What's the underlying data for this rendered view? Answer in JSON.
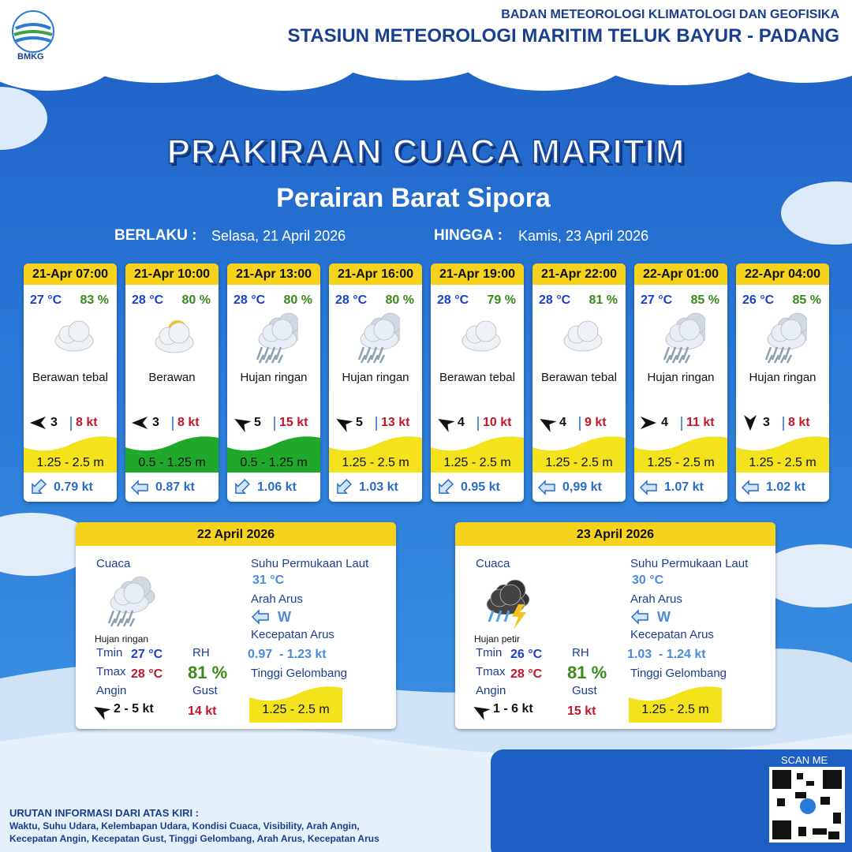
{
  "header": {
    "logo_text": "BMKG",
    "org": "BADAN METEOROLOGI KLIMATOLOGI DAN GEOFISIKA",
    "station": "STASIUN METEOROLOGI MARITIM TELUK BAYUR - PADANG"
  },
  "title": "PRAKIRAAN CUACA MARITIM",
  "subtitle": "Perairan Barat Sipora",
  "validity": {
    "from_label": "BERLAKU :",
    "from": "Selasa, 21 April 2026",
    "to_label": "HINGGA :",
    "to": "Kamis, 23 April 2026"
  },
  "forecasts": [
    {
      "time": "21-Apr 07:00",
      "temp": "27 °C",
      "rh": "83 %",
      "weather": "Berawan tebal",
      "wind": "3",
      "gust": "8 kt",
      "wave": "1.25 - 2.5 m",
      "wave_color": "#f3e21c",
      "current": "0.79 kt"
    },
    {
      "time": "21-Apr 10:00",
      "temp": "28 °C",
      "rh": "80 %",
      "weather": "Berawan",
      "wind": "3",
      "gust": "8 kt",
      "wave": "0.5 - 1.25 m",
      "wave_color": "#1fa82a",
      "current": "0.87 kt"
    },
    {
      "time": "21-Apr 13:00",
      "temp": "28 °C",
      "rh": "80 %",
      "weather": "Hujan ringan",
      "wind": "5",
      "gust": "15 kt",
      "wave": "0.5 - 1.25 m",
      "wave_color": "#1fa82a",
      "current": "1.06 kt"
    },
    {
      "time": "21-Apr 16:00",
      "temp": "28 °C",
      "rh": "80 %",
      "weather": "Hujan ringan",
      "wind": "5",
      "gust": "13 kt",
      "wave": "1.25 - 2.5 m",
      "wave_color": "#f3e21c",
      "current": "1.03 kt"
    },
    {
      "time": "21-Apr 19:00",
      "temp": "28 °C",
      "rh": "79 %",
      "weather": "Berawan tebal",
      "wind": "4",
      "gust": "10 kt",
      "wave": "1.25 - 2.5 m",
      "wave_color": "#f3e21c",
      "current": "0.95 kt"
    },
    {
      "time": "21-Apr 22:00",
      "temp": "28 °C",
      "rh": "81 %",
      "weather": "Berawan tebal",
      "wind": "4",
      "gust": "9 kt",
      "wave": "1.25 - 2.5 m",
      "wave_color": "#f3e21c",
      "current": "0,99 kt"
    },
    {
      "time": "22-Apr 01:00",
      "temp": "27 °C",
      "rh": "85 %",
      "weather": "Hujan ringan",
      "wind": "4",
      "gust": "11 kt",
      "wave": "1.25 - 2.5 m",
      "wave_color": "#f3e21c",
      "current": "1.07 kt"
    },
    {
      "time": "22-Apr 04:00",
      "temp": "26 °C",
      "rh": "85 %",
      "weather": "Hujan ringan",
      "wind": "3",
      "gust": "8 kt",
      "wave": "1.25 - 2.5 m",
      "wave_color": "#f3e21c",
      "current": "1.02 kt"
    }
  ],
  "daily_labels": {
    "weather": "Cuaca",
    "tmin": "Tmin",
    "tmax": "Tmax",
    "rh": "RH",
    "wind": "Angin",
    "gust": "Gust",
    "sst": "Suhu Permukaan Laut",
    "current_dir": "Arah Arus",
    "current_speed": "Kecepatan Arus",
    "wave": "Tinggi Gelombang"
  },
  "daily": [
    {
      "date": "22 April 2026",
      "weather": "Hujan ringan",
      "tmin": "27 °C",
      "tmax": "28 °C",
      "rh": "81 %",
      "wind": "2 - 5 kt",
      "gust": "14 kt",
      "sst": "31 °C",
      "current_dir": "W",
      "current_speed": "0.97  - 1.23 kt",
      "wave": "1.25 - 2.5 m"
    },
    {
      "date": "23 April 2026",
      "weather": "Hujan petir",
      "tmin": "26 °C",
      "tmax": "28 °C",
      "rh": "81 %",
      "wind": "1 - 6 kt",
      "gust": "15 kt",
      "sst": "30 °C",
      "current_dir": "W",
      "current_speed": "1.03  - 1.24 kt",
      "wave": "1.25 - 2.5 m"
    }
  ],
  "footer": {
    "scan_me": "SCAN ME",
    "info_title": "URUTAN INFORMASI DARI ATAS KIRI :",
    "info_lines": [
      "Waktu, Suhu Udara, Kelembapan Udara, Kondisi Cuaca, Visibility, Arah Angin,",
      "Kecepatan Angin, Kecepatan Gust, Tinggi Gelombang, Arah Arus, Kecepatan Arus"
    ]
  }
}
